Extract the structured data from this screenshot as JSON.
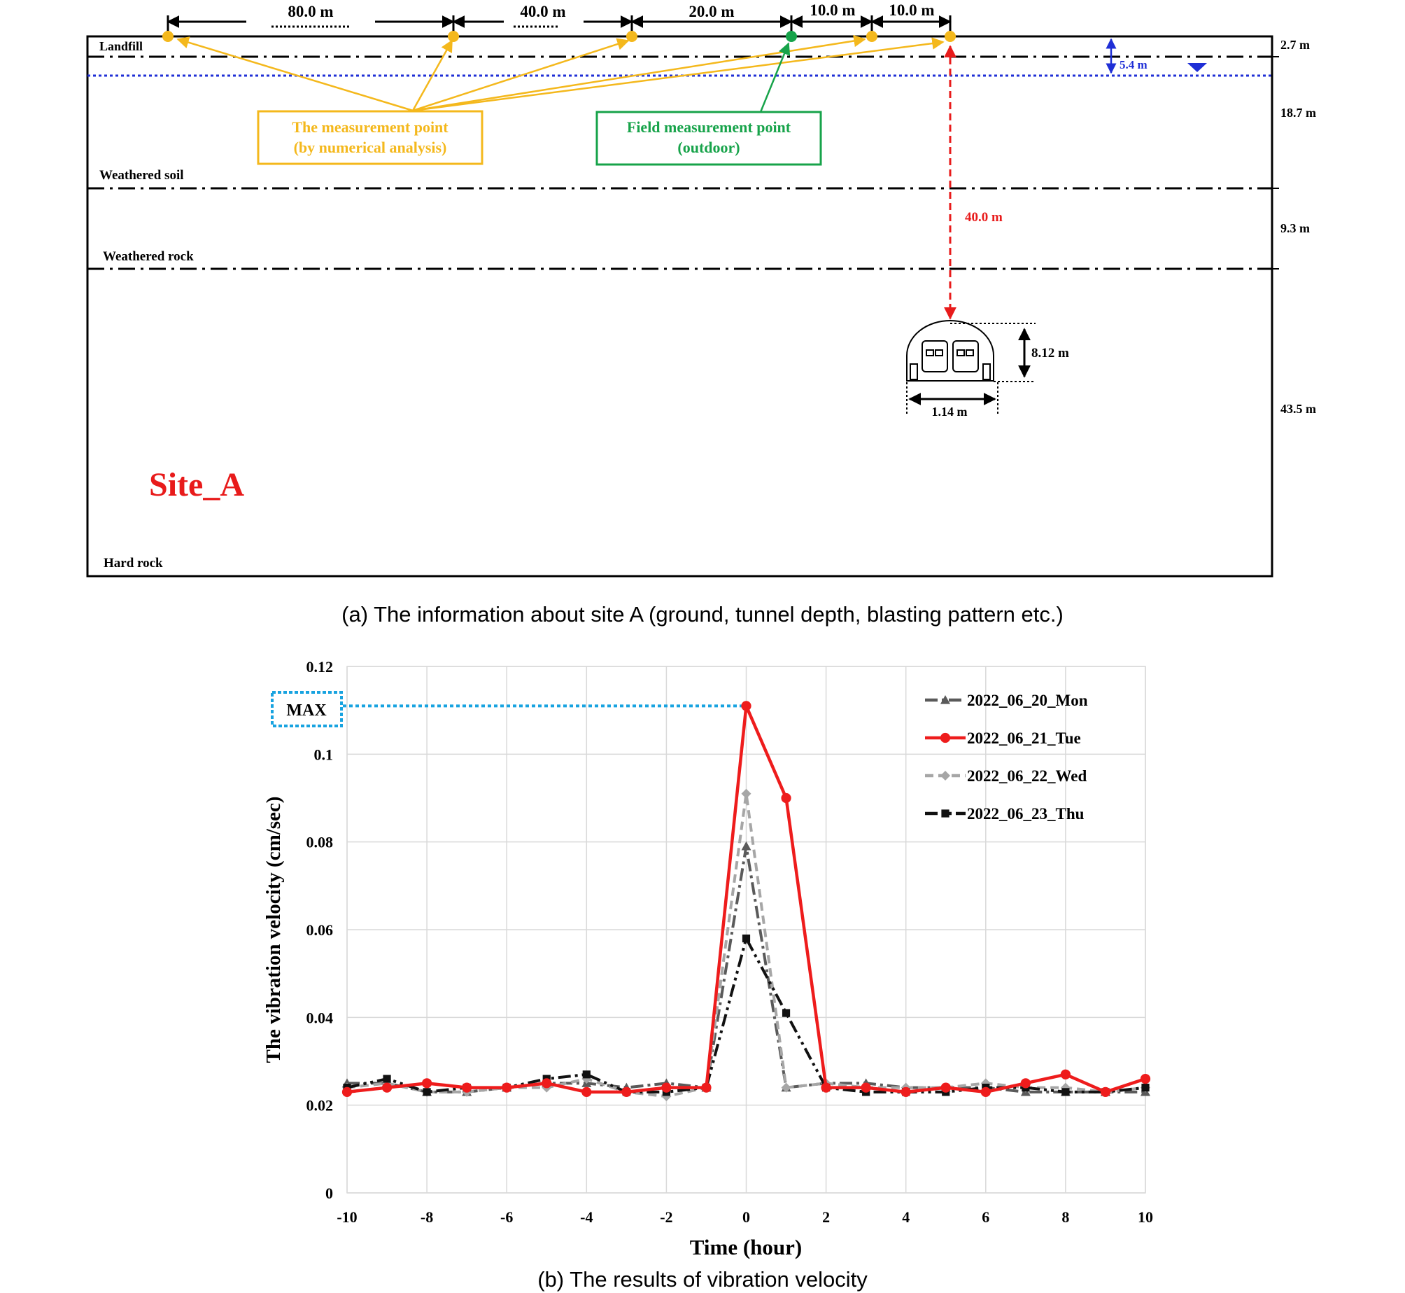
{
  "panel_a": {
    "caption": "(a) The information about site A (ground, tunnel depth, blasting pattern etc.)",
    "site_label": "Site_A",
    "layers": [
      "Landfill",
      "Weathered soil",
      "Weathered rock",
      "Hard rock"
    ],
    "spacings": [
      "80.0 m",
      "40.0 m",
      "20.0 m",
      "10.0 m",
      "10.0 m"
    ],
    "thicknesses": [
      "2.7 m",
      "18.7 m",
      "9.3 m",
      "43.5 m"
    ],
    "water_depth": "5.4 m",
    "tunnel_depth": "40.0 m",
    "tunnel_height": "8.12 m",
    "tunnel_width": "1.14 m",
    "legend_numerical": [
      "The measurement point",
      "(by numerical analysis)"
    ],
    "legend_field": [
      "Field measurement point",
      "(outdoor)"
    ],
    "colors": {
      "numerical": "#f4b81c",
      "field": "#17a34a",
      "water": "#1f2fd6",
      "depth": "#e81b1b"
    }
  },
  "chart_data": {
    "type": "line",
    "caption": "(b) The results of vibration velocity",
    "xlabel": "Time (hour)",
    "ylabel": "The vibration velocity (cm/sec)",
    "xlim": [
      -10,
      10
    ],
    "ylim": [
      0,
      0.12
    ],
    "xticks": [
      -10,
      -8,
      -6,
      -4,
      -2,
      0,
      2,
      4,
      6,
      8,
      10
    ],
    "yticks": [
      0,
      0.02,
      0.04,
      0.06,
      0.08,
      0.1,
      0.12
    ],
    "grid": true,
    "legend_position": "top-right",
    "annotation": "MAX",
    "x": [
      -10,
      -9,
      -8,
      -7,
      -6,
      -5,
      -4,
      -3,
      -2,
      -1,
      0,
      1,
      2,
      3,
      4,
      5,
      6,
      7,
      8,
      9,
      10
    ],
    "series": [
      {
        "name": "2022_06_20_Mon",
        "color": "#5a5a5a",
        "marker": "triangle",
        "dash": "dashdot",
        "values": [
          0.025,
          0.025,
          0.023,
          0.023,
          0.024,
          0.025,
          0.025,
          0.024,
          0.025,
          0.024,
          0.079,
          0.024,
          0.025,
          0.025,
          0.024,
          0.024,
          0.024,
          0.023,
          0.023,
          0.023,
          0.023
        ]
      },
      {
        "name": "2022_06_21_Tue",
        "color": "#ee1c1c",
        "marker": "circle",
        "dash": "solid",
        "values": [
          0.023,
          0.024,
          0.025,
          0.024,
          0.024,
          0.025,
          0.023,
          0.023,
          0.024,
          0.024,
          0.111,
          0.09,
          0.024,
          0.024,
          0.023,
          0.024,
          0.023,
          0.025,
          0.027,
          0.023,
          0.026
        ]
      },
      {
        "name": "2022_06_22_Wed",
        "color": "#a6a6a6",
        "marker": "diamond",
        "dash": "dash",
        "values": [
          0.024,
          0.025,
          0.023,
          0.023,
          0.024,
          0.024,
          0.026,
          0.023,
          0.022,
          0.024,
          0.091,
          0.024,
          0.025,
          0.024,
          0.024,
          0.024,
          0.025,
          0.024,
          0.024,
          0.023,
          0.024
        ]
      },
      {
        "name": "2022_06_23_Thu",
        "color": "#111111",
        "marker": "square",
        "dash": "dashdotdot",
        "values": [
          0.024,
          0.026,
          0.023,
          0.024,
          0.024,
          0.026,
          0.027,
          0.023,
          0.023,
          0.024,
          0.058,
          0.041,
          0.024,
          0.023,
          0.023,
          0.023,
          0.024,
          0.024,
          0.023,
          0.023,
          0.024
        ]
      }
    ]
  }
}
